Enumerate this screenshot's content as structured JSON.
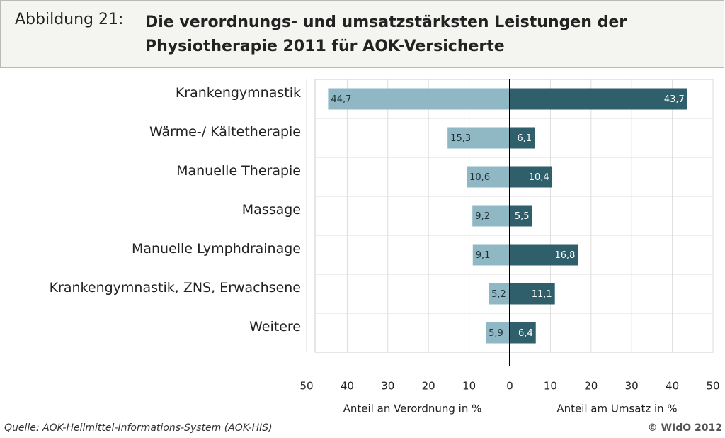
{
  "chart_data": {
    "type": "butterfly-bar",
    "figure_label": "Abbildung 21:",
    "title": "Die verordnungs- und umsatzstärksten Leistungen der Physiotherapie 2011 für AOK-Versicherte",
    "categories": [
      "Krankengymnastik",
      "Wärme-/ Kältetherapie",
      "Manuelle Therapie",
      "Massage",
      "Manuelle Lymphdrainage",
      "Krankengymnastik, ZNS, Erwachsene",
      "Weitere"
    ],
    "series": [
      {
        "name": "Anteil an Verordnung in %",
        "side": "left",
        "color": "#8fb8c4",
        "values": [
          44.7,
          15.3,
          10.6,
          9.2,
          9.1,
          5.2,
          5.9
        ],
        "value_labels": [
          "44,7",
          "15,3",
          "10,6",
          "9,2",
          "9,1",
          "5,2",
          "5,9"
        ]
      },
      {
        "name": "Anteil am Umsatz in %",
        "side": "right",
        "color": "#2f5f6a",
        "values": [
          43.7,
          6.1,
          10.4,
          5.5,
          16.8,
          11.1,
          6.4
        ],
        "value_labels": [
          "43,7",
          "6,1",
          "10,4",
          "5,5",
          "16,8",
          "11,1",
          "6,4"
        ]
      }
    ],
    "xlim": [
      -50,
      50
    ],
    "xticks": [
      {
        "value": -50,
        "label": "50"
      },
      {
        "value": -40,
        "label": "40"
      },
      {
        "value": -30,
        "label": "30"
      },
      {
        "value": -20,
        "label": "20"
      },
      {
        "value": -10,
        "label": "10"
      },
      0,
      10,
      20,
      30,
      40,
      50
    ],
    "grid": true,
    "source": "Quelle: AOK-Heilmittel-Informations-System (AOK-HIS)",
    "copyright": "© WIdO 2012"
  }
}
